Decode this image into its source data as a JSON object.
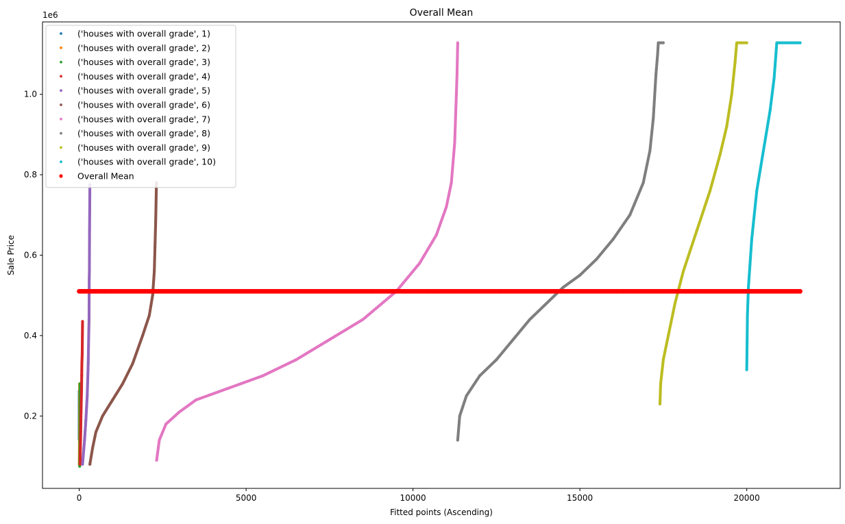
{
  "chart_data": {
    "type": "scatter",
    "title": "Overall Mean",
    "xlabel": "Fitted points (Ascending)",
    "ylabel": "Sale Price",
    "y_offset_label": "1e6",
    "xlim": [
      -1100,
      22800
    ],
    "ylim": [
      0.02,
      1.18
    ],
    "y_units": "millions",
    "xticks": [
      0,
      5000,
      10000,
      15000,
      20000
    ],
    "xtick_labels": [
      "0",
      "5000",
      "10000",
      "15000",
      "20000"
    ],
    "yticks": [
      0.2,
      0.4,
      0.6,
      0.8,
      1.0
    ],
    "ytick_labels": [
      "0.2",
      "0.4",
      "0.6",
      "0.8",
      "1.0"
    ],
    "grid": false,
    "legend_position": "top-left",
    "series": [
      {
        "name": "('houses with overall grade', 1)",
        "color": "#1f77b4",
        "points": [
          [
            0,
            0.142
          ],
          [
            1,
            0.228
          ],
          [
            2,
            0.262
          ]
        ]
      },
      {
        "name": "('houses with overall grade', 2)",
        "color": "#ff7f0e",
        "points": [
          [
            3,
            0.08
          ],
          [
            5,
            0.095
          ],
          [
            7,
            0.12
          ],
          [
            9,
            0.16
          ],
          [
            11,
            0.23
          ],
          [
            13,
            0.28
          ]
        ]
      },
      {
        "name": "('houses with overall grade', 3)",
        "color": "#2ca02c",
        "points": [
          [
            14,
            0.075
          ],
          [
            16,
            0.085
          ],
          [
            18,
            0.11
          ],
          [
            20,
            0.15
          ],
          [
            22,
            0.2
          ],
          [
            24,
            0.28
          ]
        ]
      },
      {
        "name": "('houses with overall grade', 4)",
        "color": "#d62728",
        "points": [
          [
            27,
            0.08
          ],
          [
            30,
            0.1
          ],
          [
            35,
            0.12
          ],
          [
            40,
            0.14
          ],
          [
            45,
            0.16
          ],
          [
            50,
            0.19
          ],
          [
            55,
            0.21
          ],
          [
            60,
            0.23
          ],
          [
            65,
            0.25
          ],
          [
            70,
            0.265
          ],
          [
            75,
            0.3
          ],
          [
            80,
            0.33
          ],
          [
            90,
            0.355
          ],
          [
            100,
            0.435
          ]
        ]
      },
      {
        "name": "('houses with overall grade', 5)",
        "color": "#9467bd",
        "points": [
          [
            100,
            0.08
          ],
          [
            120,
            0.1
          ],
          [
            140,
            0.12
          ],
          [
            160,
            0.14
          ],
          [
            180,
            0.165
          ],
          [
            200,
            0.19
          ],
          [
            220,
            0.22
          ],
          [
            240,
            0.25
          ],
          [
            255,
            0.29
          ],
          [
            270,
            0.33
          ],
          [
            285,
            0.4
          ],
          [
            295,
            0.44
          ],
          [
            300,
            0.54
          ],
          [
            305,
            0.56
          ],
          [
            310,
            0.66
          ],
          [
            315,
            0.715
          ],
          [
            320,
            0.775
          ]
        ]
      },
      {
        "name": "('houses with overall grade', 6)",
        "color": "#8c564b",
        "points": [
          [
            320,
            0.08
          ],
          [
            400,
            0.12
          ],
          [
            500,
            0.16
          ],
          [
            700,
            0.2
          ],
          [
            1000,
            0.24
          ],
          [
            1300,
            0.28
          ],
          [
            1600,
            0.33
          ],
          [
            1900,
            0.4
          ],
          [
            2100,
            0.45
          ],
          [
            2200,
            0.5
          ],
          [
            2250,
            0.56
          ],
          [
            2270,
            0.62
          ],
          [
            2290,
            0.68
          ],
          [
            2300,
            0.72
          ],
          [
            2310,
            0.765
          ],
          [
            2315,
            0.78
          ]
        ]
      },
      {
        "name": "('houses with overall grade', 7)",
        "color": "#e377c2",
        "points": [
          [
            2320,
            0.09
          ],
          [
            2400,
            0.14
          ],
          [
            2600,
            0.18
          ],
          [
            3000,
            0.21
          ],
          [
            3500,
            0.24
          ],
          [
            4500,
            0.27
          ],
          [
            5500,
            0.3
          ],
          [
            6500,
            0.34
          ],
          [
            7500,
            0.39
          ],
          [
            8500,
            0.44
          ],
          [
            9500,
            0.51
          ],
          [
            10200,
            0.58
          ],
          [
            10700,
            0.65
          ],
          [
            11000,
            0.72
          ],
          [
            11150,
            0.78
          ],
          [
            11250,
            0.88
          ],
          [
            11300,
            1.0
          ],
          [
            11320,
            1.05
          ],
          [
            11340,
            1.128
          ]
        ]
      },
      {
        "name": "('houses with overall grade', 8)",
        "color": "#7f7f7f",
        "points": [
          [
            11340,
            0.14
          ],
          [
            11400,
            0.2
          ],
          [
            11600,
            0.25
          ],
          [
            12000,
            0.3
          ],
          [
            12500,
            0.34
          ],
          [
            13000,
            0.39
          ],
          [
            13500,
            0.44
          ],
          [
            14000,
            0.48
          ],
          [
            14500,
            0.52
          ],
          [
            15000,
            0.55
          ],
          [
            15500,
            0.59
          ],
          [
            16000,
            0.64
          ],
          [
            16500,
            0.7
          ],
          [
            16900,
            0.78
          ],
          [
            17100,
            0.86
          ],
          [
            17200,
            0.94
          ],
          [
            17280,
            1.05
          ],
          [
            17330,
            1.1
          ],
          [
            17350,
            1.128
          ],
          [
            17500,
            1.128
          ]
        ]
      },
      {
        "name": "('houses with overall grade', 9)",
        "color": "#bcbd22",
        "points": [
          [
            17400,
            0.23
          ],
          [
            17420,
            0.28
          ],
          [
            17500,
            0.34
          ],
          [
            17650,
            0.4
          ],
          [
            17850,
            0.48
          ],
          [
            18100,
            0.56
          ],
          [
            18500,
            0.66
          ],
          [
            18900,
            0.76
          ],
          [
            19200,
            0.85
          ],
          [
            19400,
            0.92
          ],
          [
            19550,
            1.0
          ],
          [
            19650,
            1.08
          ],
          [
            19700,
            1.128
          ],
          [
            20000,
            1.128
          ]
        ]
      },
      {
        "name": "('houses with overall grade', 10)",
        "color": "#17becf",
        "points": [
          [
            20000,
            0.315
          ],
          [
            20010,
            0.38
          ],
          [
            20020,
            0.45
          ],
          [
            20050,
            0.52
          ],
          [
            20150,
            0.64
          ],
          [
            20300,
            0.76
          ],
          [
            20500,
            0.86
          ],
          [
            20700,
            0.96
          ],
          [
            20820,
            1.04
          ],
          [
            20900,
            1.128
          ],
          [
            21600,
            1.128
          ]
        ]
      },
      {
        "name": "Overall Mean",
        "color": "#ff0000",
        "type": "mean_line",
        "value": 0.51,
        "x_range": [
          0,
          21600
        ]
      }
    ]
  }
}
